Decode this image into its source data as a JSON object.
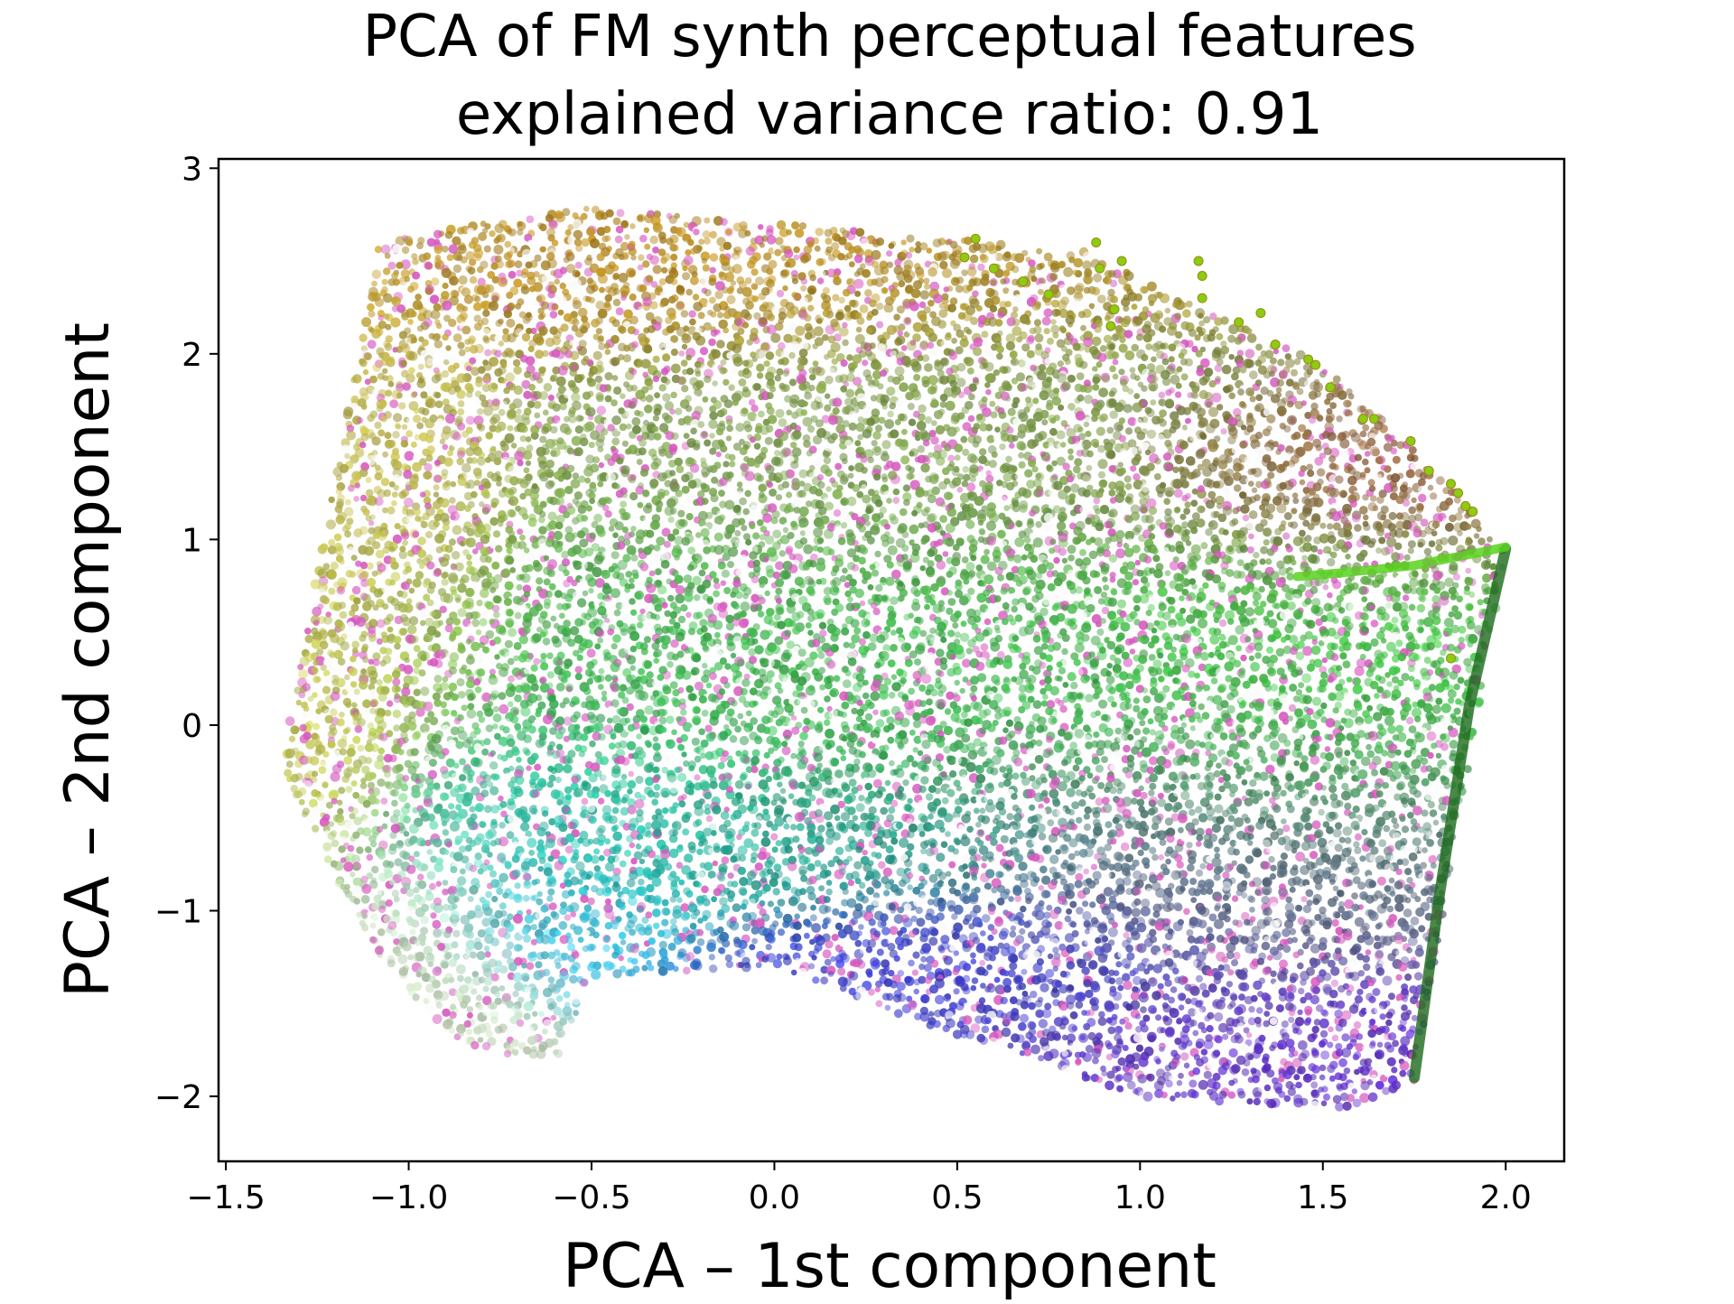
{
  "chart_data": {
    "type": "scatter",
    "title": "PCA of FM synth perceptual features",
    "subtitle": "explained variance ratio: 0.91",
    "xlabel": "PCA – 1st component",
    "ylabel": "PCA – 2nd component",
    "xlim": [
      -1.52,
      2.16
    ],
    "ylim": [
      -2.35,
      3.05
    ],
    "x_ticks": [
      -1.5,
      -1.0,
      -0.5,
      0.0,
      0.5,
      1.0,
      1.5,
      2.0
    ],
    "x_tick_labels": [
      "−1.5",
      "−1.0",
      "−0.5",
      "0.0",
      "0.5",
      "1.0",
      "1.5",
      "2.0"
    ],
    "y_ticks": [
      -2,
      -1,
      0,
      1,
      2,
      3
    ],
    "y_tick_labels": [
      "−2",
      "−1",
      "0",
      "1",
      "2",
      "3"
    ],
    "grid": false,
    "legend": "none",
    "cloud_outline": [
      [
        -1.35,
        -0.24
      ],
      [
        -1.08,
        2.6
      ],
      [
        -0.55,
        2.79
      ],
      [
        0.2,
        2.67
      ],
      [
        0.85,
        2.55
      ],
      [
        1.5,
        1.95
      ],
      [
        1.85,
        1.3
      ],
      [
        2.0,
        0.95
      ],
      [
        1.75,
        -1.92
      ],
      [
        1.55,
        -2.07
      ],
      [
        1.0,
        -2.0
      ],
      [
        0.4,
        -1.6
      ],
      [
        0.0,
        -1.3
      ],
      [
        -0.5,
        -1.35
      ],
      [
        -0.6,
        -1.82
      ],
      [
        -0.87,
        -1.72
      ],
      [
        -1.1,
        -1.2
      ]
    ],
    "regions": [
      {
        "name": "top band",
        "color": "#b8861b",
        "center": [
          -0.2,
          2.35
        ],
        "spread": [
          0.75,
          0.22
        ]
      },
      {
        "name": "upper left",
        "color": "#c2b64a",
        "center": [
          -1.05,
          1.2
        ],
        "spread": [
          0.18,
          0.75
        ]
      },
      {
        "name": "upper middle",
        "color": "#7a9a48",
        "center": [
          0.4,
          1.55
        ],
        "spread": [
          0.65,
          0.45
        ]
      },
      {
        "name": "middle green",
        "color": "#38b24a",
        "center": [
          0.2,
          0.3
        ],
        "spread": [
          0.75,
          0.45
        ]
      },
      {
        "name": "right green",
        "color": "#3cc23c",
        "center": [
          1.35,
          0.25
        ],
        "spread": [
          0.35,
          0.55
        ]
      },
      {
        "name": "left yellow",
        "color": "#d0c24a",
        "center": [
          -1.22,
          0.1
        ],
        "spread": [
          0.12,
          0.45
        ]
      },
      {
        "name": "cyan core",
        "color": "#22c6b4",
        "center": [
          -0.55,
          -0.55
        ],
        "spread": [
          0.3,
          0.28
        ]
      },
      {
        "name": "teal band",
        "color": "#1a9a8a",
        "center": [
          0.1,
          -0.6
        ],
        "spread": [
          0.4,
          0.22
        ]
      },
      {
        "name": "sky blue",
        "color": "#2ab8e0",
        "center": [
          -0.6,
          -1.05
        ],
        "spread": [
          0.17,
          0.2
        ]
      },
      {
        "name": "blue",
        "color": "#3a3ad0",
        "center": [
          0.55,
          -1.3
        ],
        "spread": [
          0.35,
          0.2
        ]
      },
      {
        "name": "purple",
        "color": "#5a28c8",
        "center": [
          1.4,
          -1.65
        ],
        "spread": [
          0.32,
          0.2
        ]
      },
      {
        "name": "lower right",
        "color": "#5e5e8a",
        "center": [
          1.2,
          -0.75
        ],
        "spread": [
          0.4,
          0.45
        ]
      },
      {
        "name": "pale tail",
        "color": "#c8d8b8",
        "center": [
          -0.95,
          -1.2
        ],
        "spread": [
          0.18,
          0.35
        ]
      },
      {
        "name": "brown fringe",
        "color": "#a0503c",
        "center": [
          1.5,
          1.3
        ],
        "spread": [
          0.3,
          0.3
        ]
      }
    ],
    "highlight_points": {
      "color": "#8ccc12",
      "x": [
        0.52,
        0.55,
        0.6,
        0.68,
        0.75,
        0.88,
        0.89,
        0.95,
        0.92,
        0.93,
        1.16,
        1.17,
        1.17,
        1.27,
        1.33,
        1.37,
        1.46,
        1.48,
        1.52,
        1.61,
        1.64,
        1.74,
        1.79,
        1.85,
        1.87,
        1.89,
        1.91,
        1.85
      ],
      "y": [
        2.52,
        2.62,
        2.46,
        2.39,
        2.32,
        2.6,
        2.46,
        2.5,
        2.15,
        2.24,
        2.5,
        2.42,
        2.3,
        2.17,
        2.22,
        2.05,
        1.97,
        1.94,
        1.82,
        1.65,
        1.65,
        1.53,
        1.37,
        1.3,
        1.25,
        1.18,
        1.15,
        0.36
      ]
    },
    "highlight_curve": {
      "color": "#59d21e",
      "x": [
        1.43,
        1.55,
        1.65,
        1.75,
        1.85,
        1.93,
        2.0
      ],
      "y": [
        0.8,
        0.82,
        0.84,
        0.86,
        0.9,
        0.93,
        0.96
      ]
    },
    "dark_edge": {
      "color": "#1b6a1b",
      "x": [
        1.75,
        1.82,
        1.9,
        2.0
      ],
      "y": [
        -1.9,
        -0.9,
        0.1,
        0.95
      ]
    }
  }
}
